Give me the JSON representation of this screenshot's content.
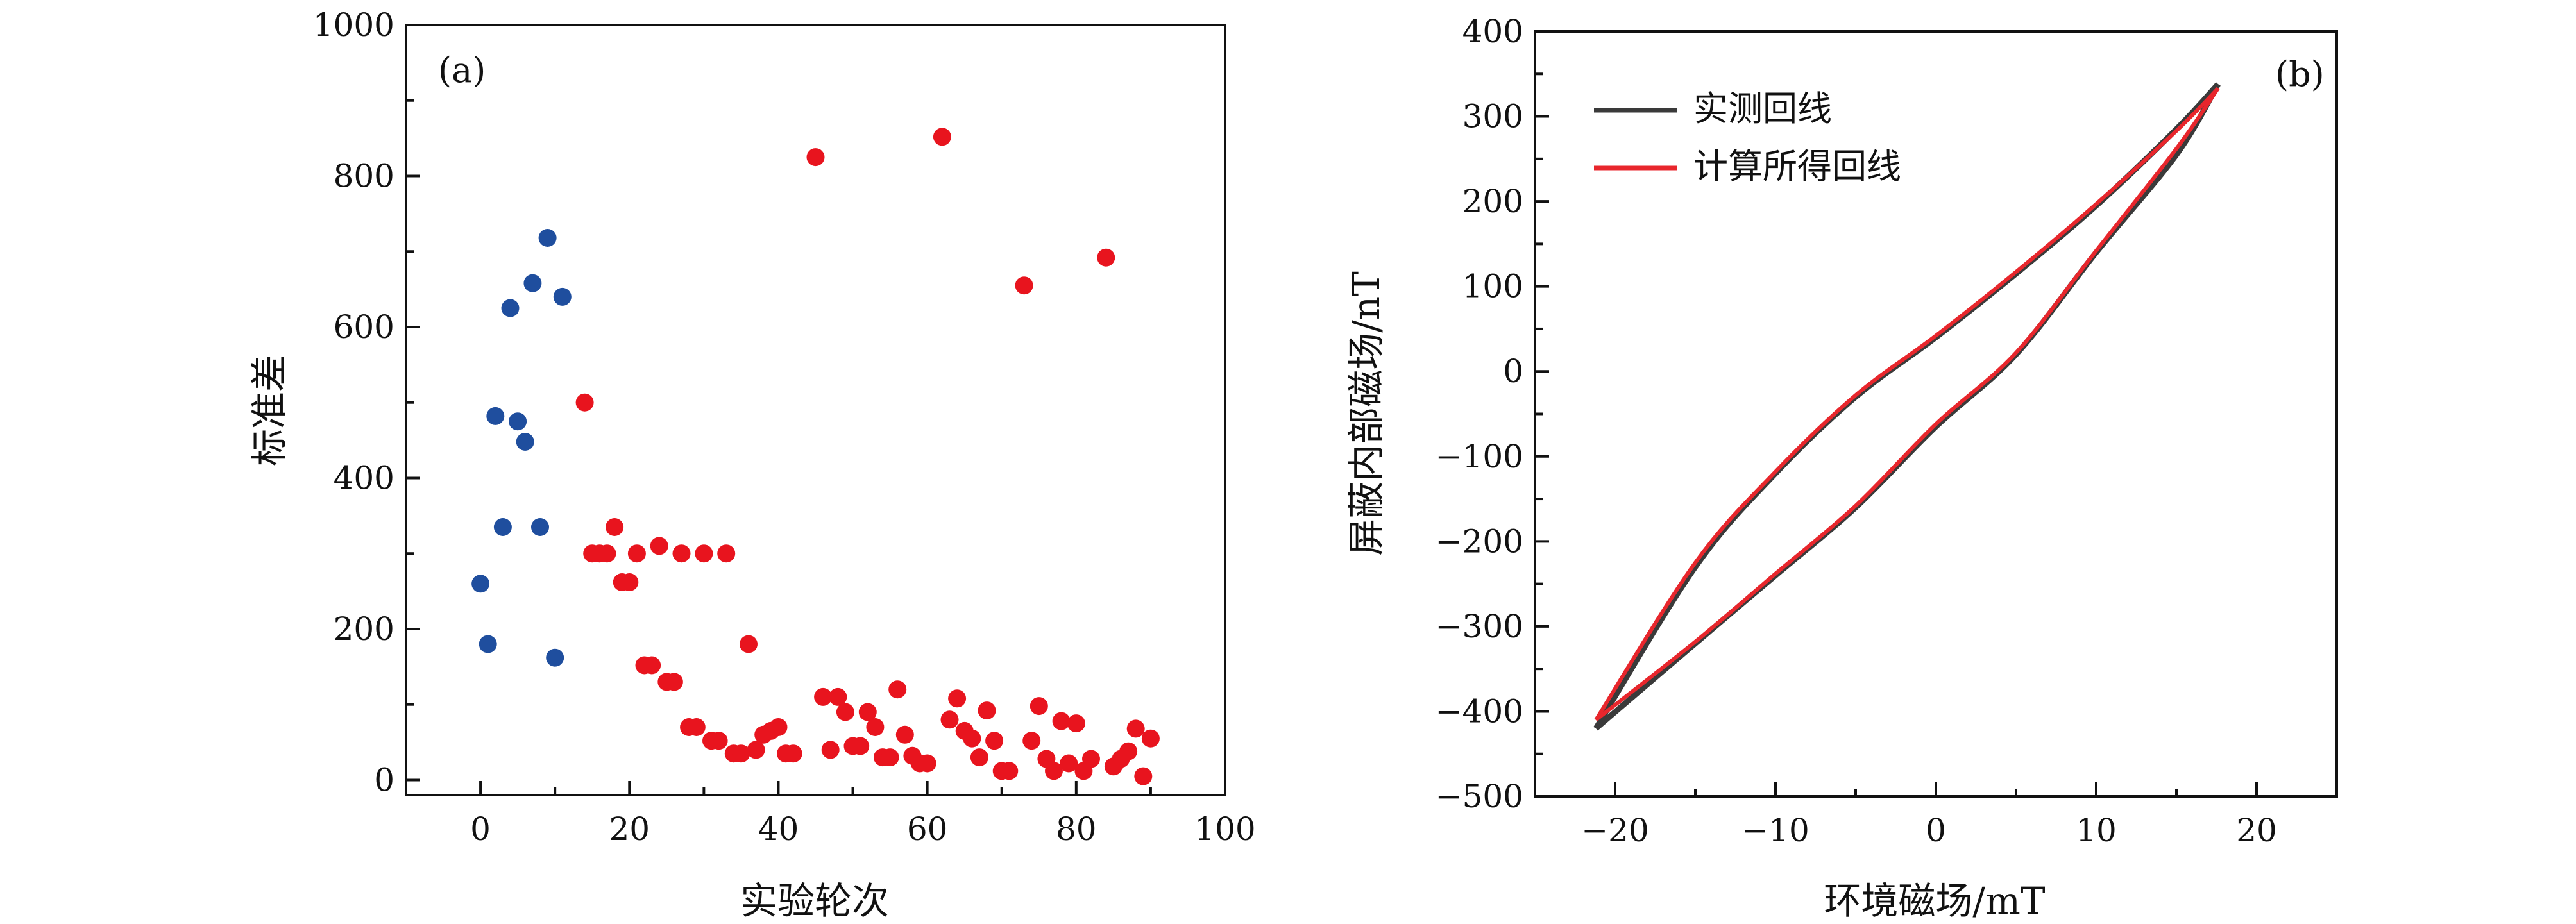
{
  "chart_data": [
    {
      "type": "scatter",
      "panel_label": "(a)",
      "xlabel": "实验轮次",
      "ylabel": "标准差",
      "xlim": [
        -10,
        100
      ],
      "ylim": [
        -20,
        1000
      ],
      "xticks": [
        "0",
        "20",
        "40",
        "60",
        "80",
        "100"
      ],
      "yticks": [
        "0",
        "200",
        "400",
        "600",
        "800",
        "1000"
      ],
      "series": [
        {
          "name": "blue",
          "color": "#1f4e9e",
          "points": [
            [
              0,
              260
            ],
            [
              1,
              180
            ],
            [
              2,
              482
            ],
            [
              3,
              335
            ],
            [
              4,
              625
            ],
            [
              5,
              475
            ],
            [
              6,
              448
            ],
            [
              7,
              658
            ],
            [
              8,
              335
            ],
            [
              9,
              718
            ],
            [
              10,
              162
            ],
            [
              11,
              640
            ]
          ]
        },
        {
          "name": "red",
          "color": "#e8141e",
          "points": [
            [
              14,
              500
            ],
            [
              15,
              300
            ],
            [
              16,
              300
            ],
            [
              17,
              300
            ],
            [
              18,
              335
            ],
            [
              19,
              262
            ],
            [
              20,
              262
            ],
            [
              21,
              300
            ],
            [
              22,
              152
            ],
            [
              23,
              152
            ],
            [
              24,
              310
            ],
            [
              25,
              130
            ],
            [
              26,
              130
            ],
            [
              27,
              300
            ],
            [
              28,
              70
            ],
            [
              29,
              70
            ],
            [
              30,
              300
            ],
            [
              31,
              52
            ],
            [
              32,
              52
            ],
            [
              33,
              300
            ],
            [
              34,
              35
            ],
            [
              35,
              35
            ],
            [
              36,
              180
            ],
            [
              37,
              40
            ],
            [
              38,
              60
            ],
            [
              39,
              65
            ],
            [
              40,
              70
            ],
            [
              41,
              35
            ],
            [
              42,
              35
            ],
            [
              45,
              825
            ],
            [
              46,
              110
            ],
            [
              47,
              40
            ],
            [
              48,
              110
            ],
            [
              49,
              90
            ],
            [
              50,
              45
            ],
            [
              51,
              45
            ],
            [
              52,
              90
            ],
            [
              53,
              70
            ],
            [
              54,
              30
            ],
            [
              55,
              30
            ],
            [
              56,
              120
            ],
            [
              57,
              60
            ],
            [
              58,
              32
            ],
            [
              59,
              22
            ],
            [
              60,
              22
            ],
            [
              62,
              852
            ],
            [
              63,
              80
            ],
            [
              64,
              108
            ],
            [
              65,
              65
            ],
            [
              66,
              55
            ],
            [
              67,
              30
            ],
            [
              68,
              92
            ],
            [
              69,
              52
            ],
            [
              70,
              12
            ],
            [
              71,
              12
            ],
            [
              73,
              655
            ],
            [
              74,
              52
            ],
            [
              75,
              98
            ],
            [
              76,
              28
            ],
            [
              77,
              12
            ],
            [
              78,
              78
            ],
            [
              79,
              22
            ],
            [
              80,
              75
            ],
            [
              81,
              12
            ],
            [
              82,
              28
            ],
            [
              84,
              692
            ],
            [
              85,
              18
            ],
            [
              86,
              28
            ],
            [
              87,
              38
            ],
            [
              88,
              68
            ],
            [
              89,
              5
            ],
            [
              90,
              55
            ]
          ]
        }
      ]
    },
    {
      "type": "line",
      "panel_label": "(b)",
      "xlabel": "环境磁场/mT",
      "ylabel": "屏蔽内部磁场/nT",
      "xlim": [
        -25,
        25
      ],
      "ylim": [
        -500,
        400
      ],
      "xticks": [
        "−20",
        "−10",
        "0",
        "10",
        "20"
      ],
      "yticks": [
        "−500",
        "−400",
        "−300",
        "−200",
        "−100",
        "0",
        "100",
        "200",
        "300",
        "400"
      ],
      "legend_position": "top-left",
      "series": [
        {
          "name": "实测回线",
          "color": "#3a3a3a",
          "upper": [
            [
              -21.2,
              -420
            ],
            [
              -15,
              -230
            ],
            [
              -10,
              -120
            ],
            [
              -5,
              -30
            ],
            [
              0,
              40
            ],
            [
              5,
              115
            ],
            [
              10,
              195
            ],
            [
              15,
              285
            ],
            [
              17.6,
              338
            ]
          ],
          "lower": [
            [
              17.6,
              338
            ],
            [
              15,
              255
            ],
            [
              10,
              140
            ],
            [
              5,
              20
            ],
            [
              0,
              -65
            ],
            [
              -5,
              -160
            ],
            [
              -10,
              -240
            ],
            [
              -15,
              -320
            ],
            [
              -21.2,
              -420
            ]
          ]
        },
        {
          "name": "计算所得回线",
          "color": "#e8262c",
          "upper": [
            [
              -21.2,
              -410
            ],
            [
              -15,
              -225
            ],
            [
              -10,
              -118
            ],
            [
              -5,
              -28
            ],
            [
              0,
              42
            ],
            [
              5,
              117
            ],
            [
              10,
              197
            ],
            [
              15,
              283
            ],
            [
              17.6,
              333
            ]
          ],
          "lower": [
            [
              17.6,
              333
            ],
            [
              15,
              262
            ],
            [
              10,
              142
            ],
            [
              5,
              22
            ],
            [
              0,
              -62
            ],
            [
              -5,
              -158
            ],
            [
              -10,
              -238
            ],
            [
              -15,
              -318
            ],
            [
              -21.2,
              -410
            ]
          ]
        }
      ]
    }
  ]
}
